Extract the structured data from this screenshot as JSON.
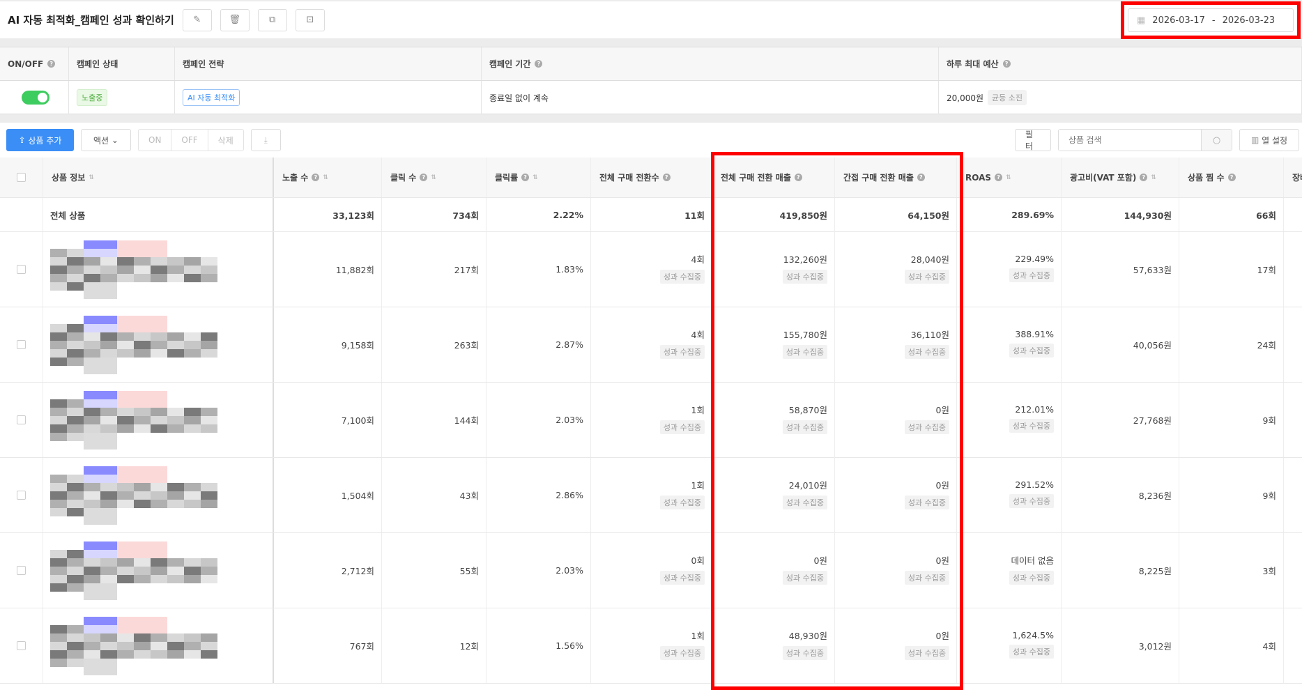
{
  "header": {
    "title": "AI 자동 최적화_캠페인 성과 확인하기",
    "icons": [
      "edit-icon",
      "trash-icon",
      "copy-icon",
      "report-icon"
    ],
    "date_start": "2026-03-17",
    "date_sep": "-",
    "date_end": "2026-03-23"
  },
  "info": {
    "headers": [
      "ON/OFF",
      "캠페인 상태",
      "캠페인 전략",
      "캠페인 기간",
      "하루 최대 예산"
    ],
    "toggle_on": true,
    "status": "노출중",
    "strategy": "AI 자동 최적화",
    "period": "종료일 없이 계속",
    "budget": "20,000원",
    "budget_tag": "균등 소진"
  },
  "toolbar": {
    "add": "상품 추가",
    "action": "액션",
    "on": "ON",
    "off": "OFF",
    "delete": "삭제",
    "filter": "필터",
    "search_placeholder": "상품 검색",
    "columns": "열 설정"
  },
  "table": {
    "headers": [
      "상품 정보",
      "노출 수",
      "클릭 수",
      "클릭률",
      "전체 구매 전환수",
      "전체 구매 전환 매출",
      "간접 구매 전환 매출",
      "ROAS",
      "광고비(VAT 포함)",
      "상품 찜 수",
      "장바"
    ],
    "total": [
      "전체 상품",
      "33,123회",
      "734회",
      "2.22%",
      "11회",
      "419,850원",
      "64,150원",
      "289.69%",
      "144,930원",
      "66회"
    ],
    "pending": "성과 수집중",
    "rows": [
      [
        "11,882회",
        "217회",
        "1.83%",
        "4회",
        "132,260원",
        "28,040원",
        "229.49%",
        "57,633원",
        "17회"
      ],
      [
        "9,158회",
        "263회",
        "2.87%",
        "4회",
        "155,780원",
        "36,110원",
        "388.91%",
        "40,056원",
        "24회"
      ],
      [
        "7,100회",
        "144회",
        "2.03%",
        "1회",
        "58,870원",
        "0원",
        "212.01%",
        "27,768원",
        "9회"
      ],
      [
        "1,504회",
        "43회",
        "2.86%",
        "1회",
        "24,010원",
        "0원",
        "291.52%",
        "8,236원",
        "9회"
      ],
      [
        "2,712회",
        "55회",
        "2.03%",
        "0회",
        "0원",
        "0원",
        "데이터 없음",
        "8,225원",
        "3회"
      ],
      [
        "767회",
        "12회",
        "1.56%",
        "1회",
        "48,930원",
        "0원",
        "1,624.5%",
        "3,012원",
        "4회"
      ]
    ]
  },
  "colors": {
    "accent": "#3a8ef6",
    "toggle": "#3dcc5e",
    "highlight": "#ff0000"
  }
}
